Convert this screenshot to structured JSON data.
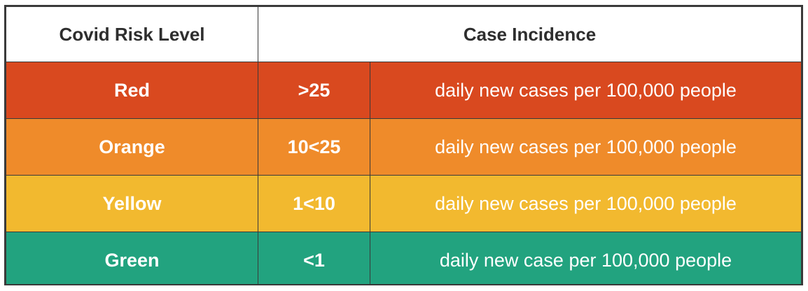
{
  "table": {
    "headers": {
      "risk_level": "Covid Risk Level",
      "case_incidence": "Case Incidence"
    },
    "rows": [
      {
        "level": "Red",
        "range": ">25",
        "description": "daily new cases per 100,000 people",
        "color": "#d9491f"
      },
      {
        "level": "Orange",
        "range": "10<25",
        "description": "daily new cases per 100,000 people",
        "color": "#ef8b2a"
      },
      {
        "level": "Yellow",
        "range": "1<10",
        "description": "daily new cases per 100,000 people",
        "color": "#f2b92f"
      },
      {
        "level": "Green",
        "range": "<1",
        "description": "daily new case per 100,000 people",
        "color": "#22a37f"
      }
    ]
  }
}
